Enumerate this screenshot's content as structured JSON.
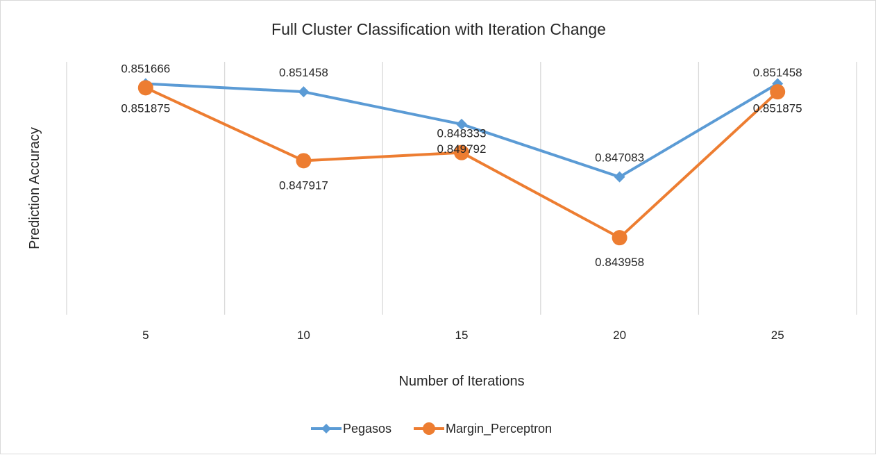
{
  "chart_data": {
    "type": "line",
    "title": "Full Cluster Classification with Iteration Change",
    "xlabel": "Number of Iterations",
    "ylabel": "Prediction Accuracy",
    "categories": [
      "5",
      "10",
      "15",
      "20",
      "25"
    ],
    "ylim": [
      0.84,
      0.853
    ],
    "grid": "vertical",
    "legend_position": "bottom",
    "series": [
      {
        "name": "Pegasos",
        "color": "#5b9bd5",
        "marker": "diamond",
        "values": [
          0.851875,
          0.851458,
          0.849792,
          0.847083,
          0.851875
        ],
        "labels": [
          "0.851875",
          "0.851458",
          "0.849792",
          "0.847083",
          "0.851875"
        ]
      },
      {
        "name": "Margin_Perceptron",
        "color": "#ed7d31",
        "marker": "circle",
        "values": [
          0.851666,
          0.847917,
          0.848333,
          0.843958,
          0.851458
        ],
        "labels": [
          "0.851666",
          "0.847917",
          "0.848333",
          "0.843958",
          "0.851458"
        ]
      }
    ]
  }
}
